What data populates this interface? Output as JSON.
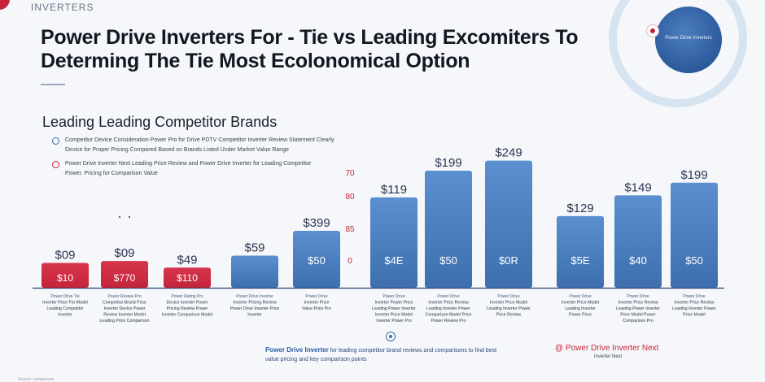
{
  "header": {
    "brand": "INVERTERS",
    "title_line1": "Power Drive Inverters For - Tie vs Leading Excomiters To",
    "title_line2": "Determing The Tie Most Ecolonomical Option",
    "badge_label": "Power Drive Inverters"
  },
  "section": {
    "title": "Leading Leading Competitor Brands",
    "note1": "Competitor Device Consideration Power Pro for Drive PDTV Competitor Inverter Review Statement Clearly Device for Proper Pricing Compared Based on Brands Listed Under Market Value Range",
    "note2": "Power Drive Inverter Next Leading Price Review and Power Drive Inverter for Leading Competitor Power. Pricing for Comparison Value"
  },
  "footer": {
    "note_bold": "Power Drive Inverter",
    "note_text": "for leading competitor brand reviews and comparisons to find best value pricing and key comparison points",
    "highlight": "@ Power Drive Inverter Next",
    "highlight_sub": "Inverter Next",
    "source": "Source: comparison"
  },
  "colors": {
    "competitor": "#c4243a",
    "power_drive": "#3d6fae",
    "bar_value_text": "#ffffff",
    "axis_text": "#c4243a"
  },
  "chart_data": {
    "type": "bar",
    "title": "",
    "xlabel": "",
    "ylabel": "",
    "y_ticks": [
      "70",
      "80",
      "85",
      "0"
    ],
    "ylim": [
      0,
      260
    ],
    "bars": [
      {
        "group": "competitor",
        "value": 37,
        "top_label": "$09",
        "inner_label": "$10",
        "caption": [
          "Power Drive Tie",
          "Inverter Price For Model",
          "Leading Competitor",
          "Inverter"
        ]
      },
      {
        "group": "competitor",
        "value": 40,
        "top_label": "$09",
        "inner_label": "$770",
        "caption": [
          "Power Review Pro",
          "Competitor Brand Price",
          "Inverter Device Power",
          "Review Inverter Model",
          "Leading Price Comparison"
        ]
      },
      {
        "group": "competitor",
        "value": 30,
        "top_label": "$49",
        "inner_label": "$110",
        "caption": [
          "Power Rating Pro",
          "Device Inverter Power",
          "Pricing Review Power",
          "Inverter Comparison Model"
        ]
      },
      {
        "group": "power_drive",
        "value": 48,
        "top_label": "$59",
        "inner_label": "",
        "caption": [
          "Power Drive Inverter",
          "Inverter Pricing Review",
          "Power Drive Inverter Price",
          "Inverter"
        ]
      },
      {
        "group": "power_drive",
        "value": 85,
        "top_label": "$399",
        "inner_label": "$50",
        "caption": [
          "Power Drive",
          "Inverter Price",
          "Value Price Pro"
        ]
      },
      {
        "group": "power_drive",
        "value": 135,
        "top_label": "$119",
        "inner_label": "$4E",
        "caption": [
          "Power Drive",
          "Inverter Power Price",
          "Leading Power Inverter",
          "Inverter Price Model",
          "Inverter Power Pro"
        ]
      },
      {
        "group": "power_drive",
        "value": 175,
        "top_label": "$199",
        "inner_label": "$50",
        "caption": [
          "Power Drive",
          "Inverter Price Review",
          "Leading Inverter Power",
          "Comparison Model Price",
          "Power Review Pro"
        ]
      },
      {
        "group": "power_drive",
        "value": 190,
        "top_label": "$249",
        "inner_label": "$0R",
        "caption": [
          "Power Drive",
          "Inverter Price Model",
          "Leading Inverter Power",
          "Price Review"
        ]
      },
      {
        "group": "power_drive",
        "value": 107,
        "top_label": "$129",
        "inner_label": "$5E",
        "caption": [
          "Power Drive",
          "Inverter Price Model",
          "Leading Inverter",
          "Power Price"
        ]
      },
      {
        "group": "power_drive",
        "value": 138,
        "top_label": "$149",
        "inner_label": "$40",
        "caption": [
          "Power Drive",
          "Inverter Price Review",
          "Leading Power Inverter",
          "Price Model Power",
          "Comparison Pro"
        ]
      },
      {
        "group": "power_drive",
        "value": 157,
        "top_label": "$199",
        "inner_label": "$50",
        "caption": [
          "Power Drive",
          "Inverter Price Review",
          "Leading Inverter Power",
          "Price Model"
        ]
      }
    ]
  }
}
